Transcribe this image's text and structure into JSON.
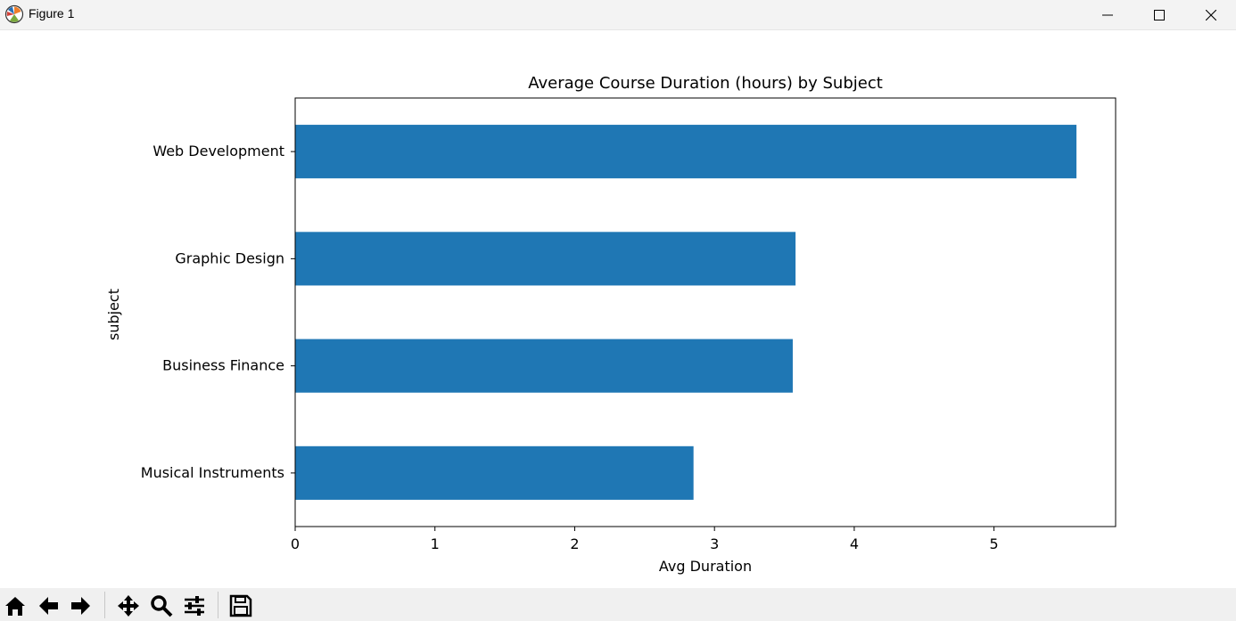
{
  "window": {
    "title": "Figure 1"
  },
  "toolbar": {
    "buttons": [
      "home-icon",
      "back-arrow-icon",
      "forward-arrow-icon",
      "pan-icon",
      "zoom-icon",
      "configure-subplots-icon",
      "save-icon"
    ]
  },
  "chart_data": {
    "type": "bar",
    "orientation": "horizontal",
    "title": "Average Course Duration (hours) by Subject",
    "xlabel": "Avg Duration",
    "ylabel": "subject",
    "categories": [
      "Musical Instruments",
      "Business Finance",
      "Graphic Design",
      "Web Development"
    ],
    "values": [
      2.85,
      3.56,
      3.58,
      5.59
    ],
    "xlim": [
      0,
      5.87
    ],
    "xticks": [
      0,
      1,
      2,
      3,
      4,
      5
    ],
    "bar_color": "#1f77b4",
    "grid": false,
    "legend": "none"
  }
}
